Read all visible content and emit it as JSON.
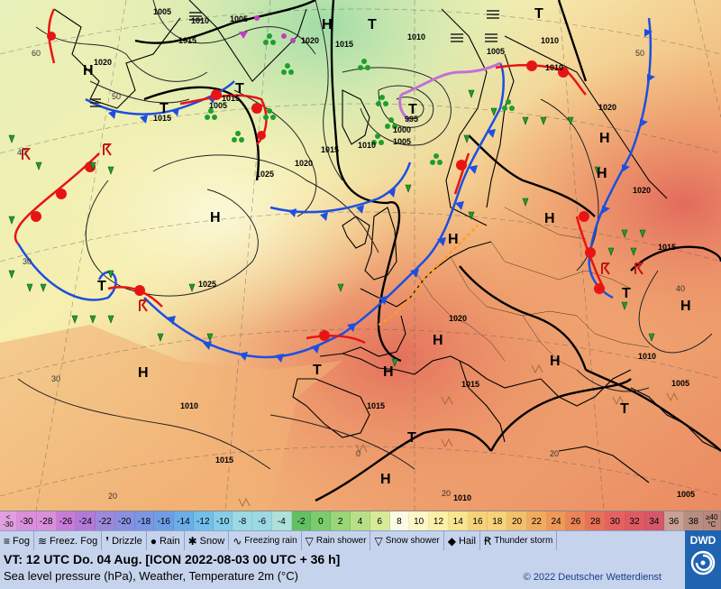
{
  "map": {
    "isobars": [
      "1005",
      "1010",
      "1005",
      "1015",
      "1020",
      "1015",
      "1010",
      "1005",
      "1010",
      "1015",
      "1020",
      "1025",
      "1020",
      "1015",
      "1010",
      "1005",
      "1000",
      "995",
      "1020",
      "1025",
      "1015",
      "1020",
      "1015",
      "1010",
      "1005",
      "1010",
      "1015",
      "1020",
      "1015",
      "1005",
      "1010",
      "1015",
      "1005",
      "1010"
    ],
    "highs": [
      "H",
      "H",
      "H",
      "H",
      "H",
      "H",
      "H",
      "H",
      "H",
      "H",
      "H",
      "H",
      "H"
    ],
    "lows": [
      "T",
      "T",
      "T",
      "T",
      "T",
      "T",
      "T",
      "T",
      "T",
      "T"
    ],
    "temp_labels": [
      "60",
      "50",
      "40",
      "30",
      "20",
      "50",
      "40",
      "20",
      "20",
      "30",
      "0"
    ]
  },
  "scale": {
    "colors": [
      "#d98fd9",
      "#c97bd8",
      "#b27ad6",
      "#9e88dc",
      "#8a90e0",
      "#7b96e3",
      "#6e9fe6",
      "#6aaee9",
      "#72bfea",
      "#85cde8",
      "#9bd9e3",
      "#aee1d7",
      "#62c064",
      "#7ccb6e",
      "#98d678",
      "#b7e086",
      "#d7ea98",
      "#fbfbe5",
      "#fdf7c8",
      "#fbf0a8",
      "#f9e48f",
      "#f6d27a",
      "#f3c06c",
      "#f0ab5f",
      "#ee985a",
      "#eb8458",
      "#e87159",
      "#e4625f",
      "#df5a62",
      "#d5586a",
      "#c9a197",
      "#b88d82"
    ],
    "labels": [
      "-30",
      "-28",
      "-26",
      "-24",
      "-22",
      "-20",
      "-18",
      "-16",
      "-14",
      "-12",
      "-10",
      "-8",
      "-6",
      "-4",
      "-2",
      "0",
      "2",
      "4",
      "6",
      "8",
      "10",
      "12",
      "14",
      "16",
      "18",
      "20",
      "22",
      "24",
      "26",
      "28",
      "30",
      "32",
      "34",
      "36",
      "38"
    ],
    "low_edge": [
      "<",
      "-30"
    ],
    "high_edge": [
      "≥40",
      "°C"
    ]
  },
  "legend": {
    "items": [
      {
        "icon": "fog-icon",
        "symbol": "≡",
        "label": "Fog"
      },
      {
        "icon": "freezing-fog-icon",
        "symbol": "≋",
        "label": "Freez. Fog"
      },
      {
        "icon": "drizzle-icon",
        "symbol": "❜",
        "label": "Drizzle"
      },
      {
        "icon": "rain-icon",
        "symbol": "●",
        "label": "Rain"
      },
      {
        "icon": "snow-icon",
        "symbol": "✱",
        "label": "Snow"
      },
      {
        "icon": "freezing-rain-icon",
        "symbol": "∿",
        "label": "Freezing rain"
      },
      {
        "icon": "rain-shower-icon",
        "symbol": "▽",
        "label": "Rain shower"
      },
      {
        "icon": "snow-shower-icon",
        "symbol": "▽",
        "label": "Snow shower"
      },
      {
        "icon": "hail-icon",
        "symbol": "◆",
        "label": "Hail"
      },
      {
        "icon": "thunderstorm-icon",
        "symbol": "Ꞧ",
        "label": "Thunder storm"
      }
    ],
    "colors": {
      "background": "#c6d3ec",
      "accent": "#1f63b1"
    }
  },
  "info": {
    "valid_time": "VT: 12 UTC Do.  04 Aug. [ICON 2022-08-03  00 UTC + 36 h]",
    "description": "Sea level pressure (hPa), Weather, Temperature 2m (°C)",
    "copyright": "© 2022 Deutscher Wetterdienst"
  },
  "logo": {
    "text": "DWD"
  }
}
